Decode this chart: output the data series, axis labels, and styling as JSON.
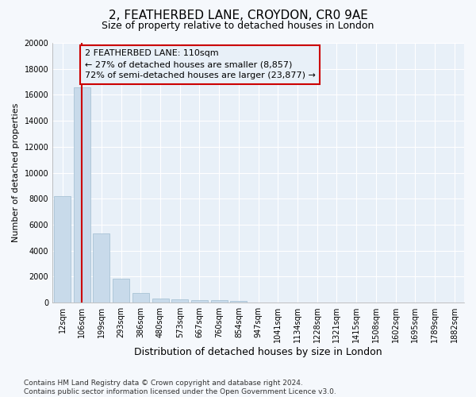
{
  "title": "2, FEATHERBED LANE, CROYDON, CR0 9AE",
  "subtitle": "Size of property relative to detached houses in London",
  "xlabel": "Distribution of detached houses by size in London",
  "ylabel": "Number of detached properties",
  "categories": [
    "12sqm",
    "106sqm",
    "199sqm",
    "293sqm",
    "386sqm",
    "480sqm",
    "573sqm",
    "667sqm",
    "760sqm",
    "854sqm",
    "947sqm",
    "1041sqm",
    "1134sqm",
    "1228sqm",
    "1321sqm",
    "1415sqm",
    "1508sqm",
    "1602sqm",
    "1695sqm",
    "1789sqm",
    "1882sqm"
  ],
  "values": [
    8200,
    16600,
    5300,
    1850,
    750,
    340,
    250,
    200,
    160,
    120,
    0,
    0,
    0,
    0,
    0,
    0,
    0,
    0,
    0,
    0,
    0
  ],
  "bar_color": "#c8daea",
  "bar_edge_color": "#a0bdd0",
  "vline_x_pos": 1.0,
  "vline_color": "#cc0000",
  "annotation_text": "2 FEATHERBED LANE: 110sqm\n← 27% of detached houses are smaller (8,857)\n72% of semi-detached houses are larger (23,877) →",
  "annotation_box_color": "#cc0000",
  "background_color": "#f5f8fc",
  "plot_bg_color": "#e8f0f8",
  "grid_color": "#ffffff",
  "ylim": [
    0,
    20000
  ],
  "yticks": [
    0,
    2000,
    4000,
    6000,
    8000,
    10000,
    12000,
    14000,
    16000,
    18000,
    20000
  ],
  "footnote": "Contains HM Land Registry data © Crown copyright and database right 2024.\nContains public sector information licensed under the Open Government Licence v3.0.",
  "title_fontsize": 11,
  "subtitle_fontsize": 9,
  "xlabel_fontsize": 9,
  "ylabel_fontsize": 8,
  "tick_fontsize": 7,
  "annotation_fontsize": 8,
  "footnote_fontsize": 6.5
}
